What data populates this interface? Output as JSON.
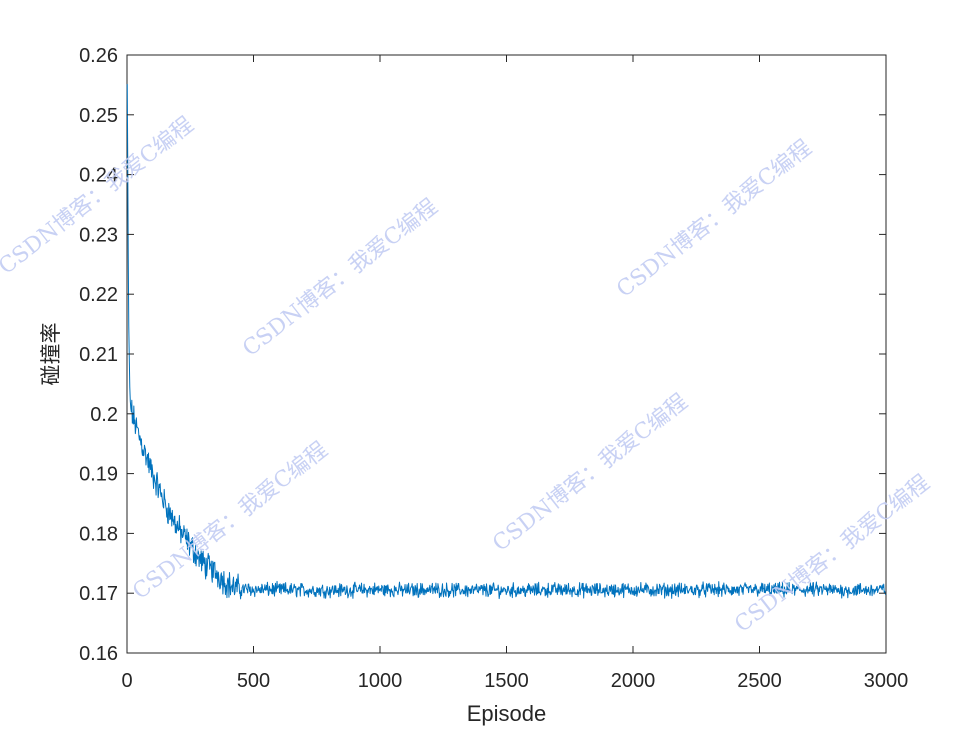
{
  "chart_data": {
    "type": "line",
    "title": "",
    "xlabel": "Episode",
    "ylabel": "碰撞率",
    "xlim": [
      0,
      3000
    ],
    "ylim": [
      0.16,
      0.26
    ],
    "xticks": [
      0,
      500,
      1000,
      1500,
      2000,
      2500,
      3000
    ],
    "xtick_labels": [
      "0",
      "500",
      "1000",
      "1500",
      "2000",
      "2500",
      "3000"
    ],
    "yticks": [
      0.16,
      0.17,
      0.18,
      0.19,
      0.2,
      0.21,
      0.22,
      0.23,
      0.24,
      0.25,
      0.26
    ],
    "ytick_labels": [
      "0.16",
      "0.17",
      "0.18",
      "0.19",
      "0.2",
      "0.21",
      "0.22",
      "0.23",
      "0.24",
      "0.25",
      "0.26"
    ],
    "grid": false,
    "series_color": "#0072BD",
    "series": [
      {
        "x": [
          1,
          3,
          5,
          8,
          12,
          20,
          35,
          50,
          75,
          100,
          130,
          160,
          200,
          250,
          300,
          350,
          400,
          430,
          500,
          600,
          700,
          800,
          900,
          1000,
          1100,
          1200,
          1300,
          1400,
          1500,
          1600,
          1700,
          1800,
          1900,
          2000,
          2100,
          2200,
          2300,
          2400,
          2500,
          2600,
          2700,
          2800,
          2900,
          3000
        ],
        "values": [
          0.255,
          0.24,
          0.225,
          0.21,
          0.202,
          0.2,
          0.198,
          0.196,
          0.193,
          0.19,
          0.187,
          0.184,
          0.181,
          0.178,
          0.175,
          0.1735,
          0.1715,
          0.1708,
          0.1706,
          0.1706,
          0.1705,
          0.1705,
          0.1705,
          0.1706,
          0.1705,
          0.1706,
          0.1705,
          0.1705,
          0.1705,
          0.1705,
          0.1706,
          0.1705,
          0.1705,
          0.1706,
          0.1705,
          0.1705,
          0.1706,
          0.1705,
          0.1706,
          0.1705,
          0.1706,
          0.1705,
          0.1705,
          0.1706
        ]
      }
    ],
    "watermark_text": "CSDN博客：我爱C编程"
  }
}
